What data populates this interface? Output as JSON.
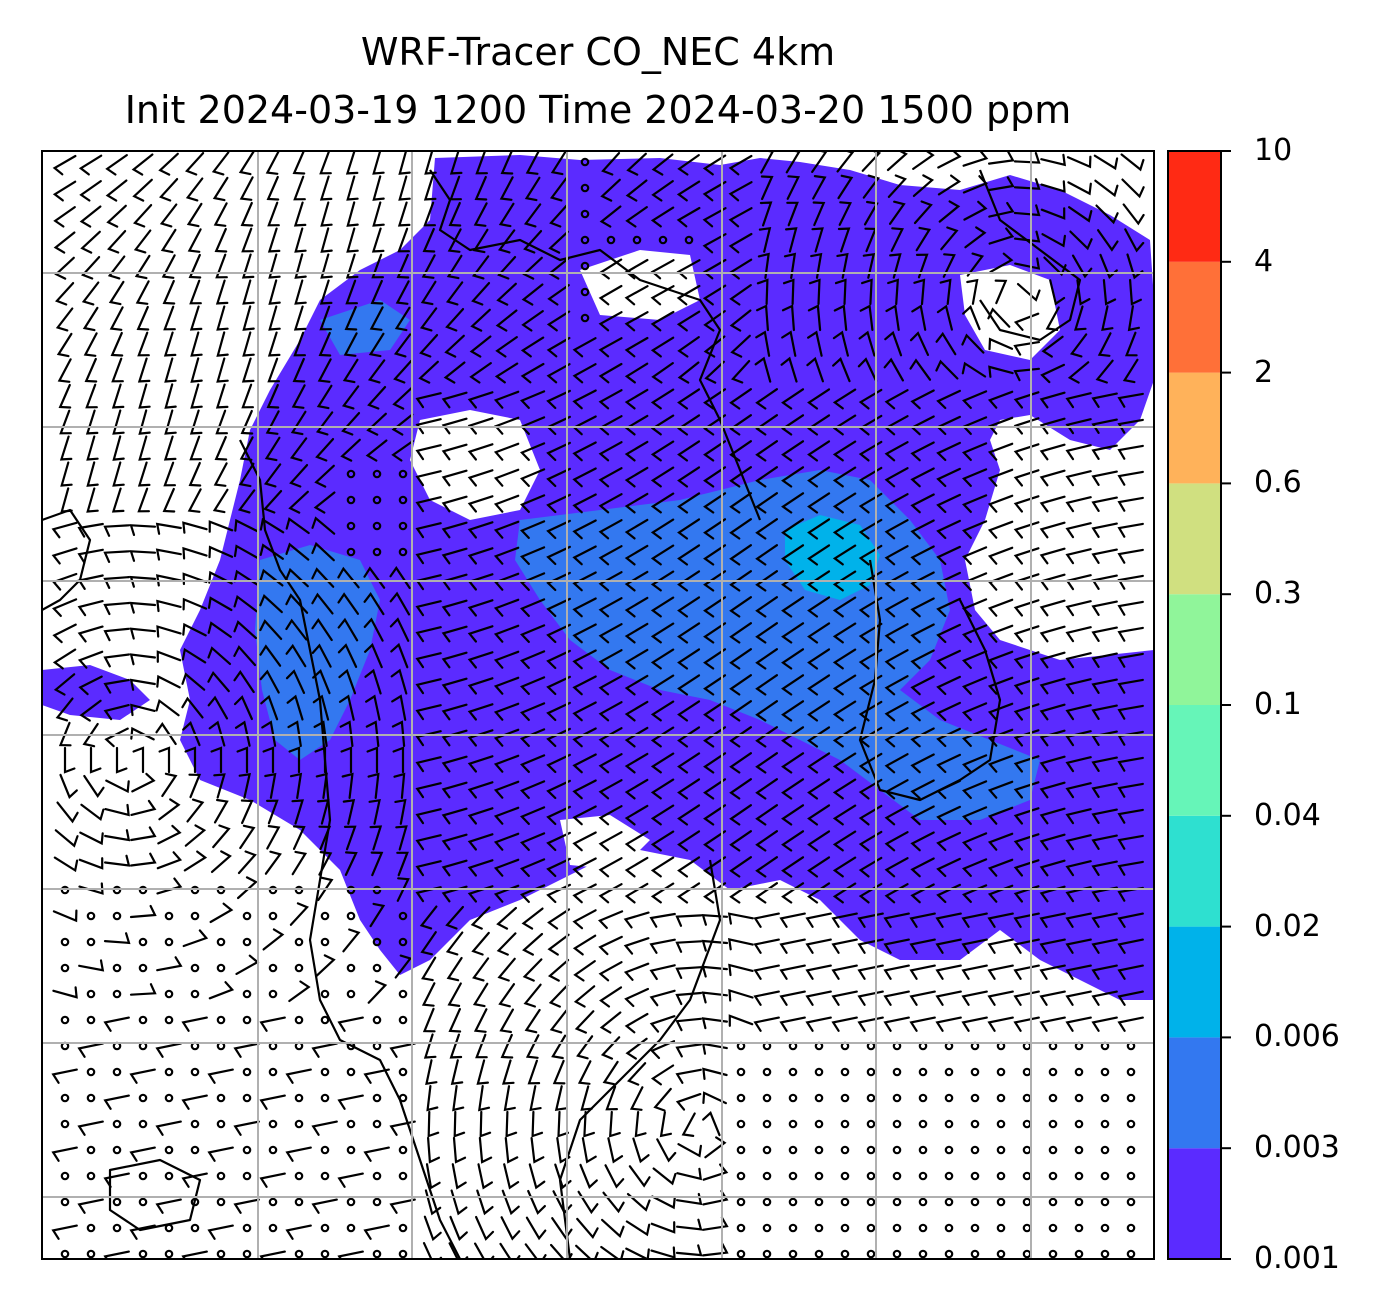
{
  "title": {
    "line1": "WRF-Tracer CO_NEC 4km",
    "line2": "Init 2024-03-19 1200 Time 2024-03-20 1500 ppm"
  },
  "colorbar": {
    "levels": [
      "0.001",
      "0.003",
      "0.006",
      "0.02",
      "0.04",
      "0.1",
      "0.3",
      "0.6",
      "2",
      "4",
      "10"
    ],
    "colors": [
      "#5b2bff",
      "#3378f0",
      "#00b2ea",
      "#2ee0d0",
      "#66f5b8",
      "#90f59a",
      "#d0e080",
      "#ffb25a",
      "#ff7038",
      "#ff2a14"
    ]
  },
  "map": {
    "coastline_color": "#000000",
    "gridline_color": "#b0b0b0",
    "wind_barb_color": "#000000"
  }
}
